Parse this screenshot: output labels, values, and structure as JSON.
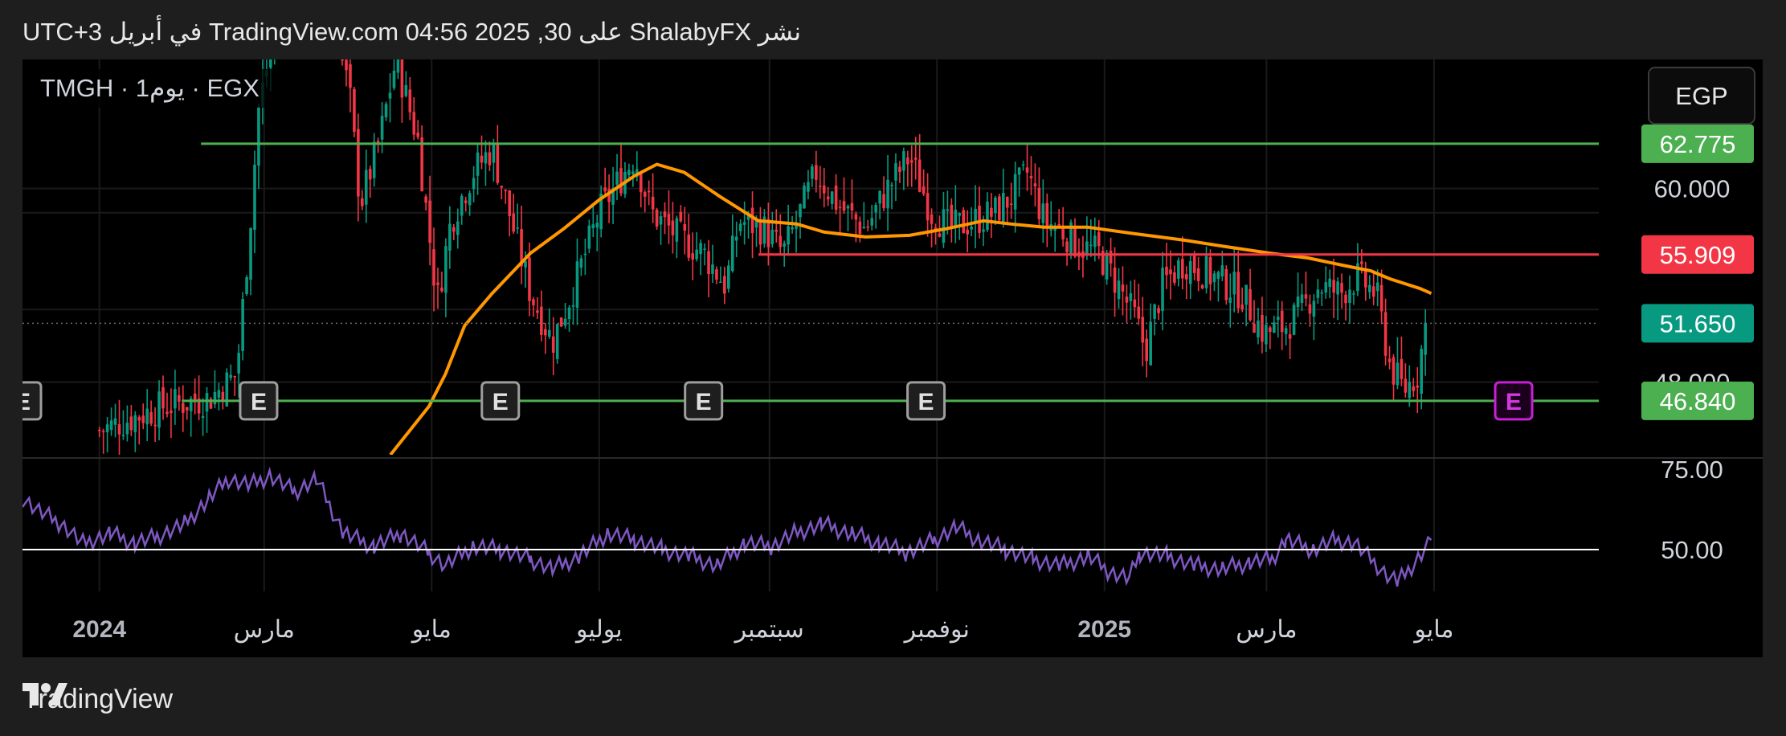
{
  "header": {
    "publish_text": "نشر ShalabyFX على TradingView.com 04:56 2025 ,30 في أبريل UTC+3"
  },
  "footer": {
    "brand": "TradingView",
    "logo_icon": "tradingview-logo-icon"
  },
  "chart_data": {
    "type": "candlestick",
    "symbol_label": "TMGH · 1يوم · EGX",
    "currency_button": "EGP",
    "price_axis": {
      "ticks": [
        "60.000",
        "48.000"
      ],
      "range": [
        43.5,
        68.0
      ],
      "hidden_tick_partial": "62.775"
    },
    "price_labels": [
      {
        "value": 62.775,
        "text": "62.775",
        "color": "#4caf50"
      },
      {
        "value": 55.909,
        "text": "55.909",
        "color": "#f23645"
      },
      {
        "value": 51.65,
        "text": "51.650",
        "color": "#089981"
      },
      {
        "value": 46.84,
        "text": "46.840",
        "color": "#4caf50"
      }
    ],
    "horizontal_lines": [
      {
        "value": 62.775,
        "color": "#4caf50",
        "from": "2024-02-07",
        "to": "2025-06-30"
      },
      {
        "value": 55.909,
        "color": "#f23645",
        "from": "2024-08-28",
        "to": "2025-06-30"
      },
      {
        "value": 46.84,
        "color": "#4caf50",
        "from": "2024-01-31",
        "to": "2025-06-30"
      },
      {
        "value": 51.65,
        "color": "#6b6b6b",
        "style": "dotted",
        "from": "2023-12-04",
        "to": "2025-06-30"
      }
    ],
    "time_axis": {
      "range": [
        "2023-12-04",
        "2025-06-30"
      ],
      "labels": [
        {
          "date": "2024-01-01",
          "text": "2024",
          "bold": true
        },
        {
          "date": "2024-03-01",
          "text": "مارس"
        },
        {
          "date": "2024-05-01",
          "text": "مايو"
        },
        {
          "date": "2024-07-01",
          "text": "يوليو"
        },
        {
          "date": "2024-09-01",
          "text": "سبتمبر"
        },
        {
          "date": "2024-11-01",
          "text": "نوفمبر"
        },
        {
          "date": "2025-01-01",
          "text": "2025",
          "bold": true
        },
        {
          "date": "2025-03-01",
          "text": "مارس"
        },
        {
          "date": "2025-05-01",
          "text": "مايو"
        }
      ]
    },
    "earnings_markers": [
      {
        "date": "2023-12-04",
        "label": "E"
      },
      {
        "date": "2024-02-28",
        "label": "E"
      },
      {
        "date": "2024-05-26",
        "label": "E"
      },
      {
        "date": "2024-08-08",
        "label": "E"
      },
      {
        "date": "2024-10-28",
        "label": "E"
      },
      {
        "date": "2025-05-30",
        "label": "E",
        "upcoming": true
      }
    ],
    "moving_average": {
      "color": "#ff9800",
      "points": [
        [
          "2024-04-16",
          43.5
        ],
        [
          "2024-04-30",
          46.5
        ],
        [
          "2024-05-06",
          48.5
        ],
        [
          "2024-05-13",
          51.5
        ],
        [
          "2024-05-23",
          53.5
        ],
        [
          "2024-06-06",
          56.0
        ],
        [
          "2024-06-18",
          57.5
        ],
        [
          "2024-07-01",
          59.3
        ],
        [
          "2024-07-14",
          60.8
        ],
        [
          "2024-07-22",
          61.5
        ],
        [
          "2024-08-01",
          61.0
        ],
        [
          "2024-08-14",
          59.5
        ],
        [
          "2024-08-28",
          58.0
        ],
        [
          "2024-09-11",
          57.8
        ],
        [
          "2024-09-21",
          57.3
        ],
        [
          "2024-10-06",
          57.0
        ],
        [
          "2024-10-22",
          57.1
        ],
        [
          "2024-11-04",
          57.5
        ],
        [
          "2024-11-18",
          58.0
        ],
        [
          "2024-11-28",
          57.8
        ],
        [
          "2024-12-10",
          57.6
        ],
        [
          "2024-12-26",
          57.6
        ],
        [
          "2025-01-12",
          57.2
        ],
        [
          "2025-01-30",
          56.8
        ],
        [
          "2025-02-14",
          56.4
        ],
        [
          "2025-03-02",
          56.0
        ],
        [
          "2025-03-16",
          55.7
        ],
        [
          "2025-03-30",
          55.2
        ],
        [
          "2025-04-08",
          54.9
        ],
        [
          "2025-04-15",
          54.4
        ],
        [
          "2025-04-26",
          53.8
        ],
        [
          "2025-04-30",
          53.5
        ]
      ]
    },
    "price_path": [
      [
        "2024-01-01",
        45.0
      ],
      [
        "2024-01-24",
        46.5
      ],
      [
        "2024-02-10",
        47.0
      ],
      [
        "2024-02-20",
        48.5
      ],
      [
        "2024-02-25",
        58.0
      ],
      [
        "2024-02-28",
        65.0
      ],
      [
        "2024-03-05",
        70.0
      ],
      [
        "2024-03-20",
        75.0
      ],
      [
        "2024-04-01",
        66.0
      ],
      [
        "2024-04-05",
        59.0
      ],
      [
        "2024-04-12",
        63.0
      ],
      [
        "2024-04-18",
        68.0
      ],
      [
        "2024-04-26",
        63.0
      ],
      [
        "2024-05-03",
        53.0
      ],
      [
        "2024-05-08",
        58.0
      ],
      [
        "2024-05-16",
        61.0
      ],
      [
        "2024-05-23",
        62.5
      ],
      [
        "2024-05-30",
        58.0
      ],
      [
        "2024-06-06",
        53.5
      ],
      [
        "2024-06-14",
        50.5
      ],
      [
        "2024-06-22",
        54.0
      ],
      [
        "2024-07-01",
        58.5
      ],
      [
        "2024-07-10",
        61.0
      ],
      [
        "2024-07-14",
        62.0
      ],
      [
        "2024-07-20",
        58.5
      ],
      [
        "2024-07-30",
        57.0
      ],
      [
        "2024-08-08",
        56.0
      ],
      [
        "2024-08-16",
        54.0
      ],
      [
        "2024-08-21",
        58.0
      ],
      [
        "2024-08-30",
        57.5
      ],
      [
        "2024-09-06",
        56.0
      ],
      [
        "2024-09-11",
        58.0
      ],
      [
        "2024-09-18",
        61.0
      ],
      [
        "2024-09-26",
        59.0
      ],
      [
        "2024-10-06",
        57.5
      ],
      [
        "2024-10-14",
        60.0
      ],
      [
        "2024-10-22",
        62.0
      ],
      [
        "2024-10-30",
        58.5
      ],
      [
        "2024-11-06",
        57.5
      ],
      [
        "2024-11-14",
        58.0
      ],
      [
        "2024-11-22",
        58.5
      ],
      [
        "2024-11-28",
        59.5
      ],
      [
        "2024-12-04",
        61.0
      ],
      [
        "2024-12-10",
        58.0
      ],
      [
        "2024-12-16",
        57.5
      ],
      [
        "2024-12-22",
        56.5
      ],
      [
        "2024-12-30",
        56.0
      ],
      [
        "2025-01-06",
        54.0
      ],
      [
        "2025-01-12",
        52.0
      ],
      [
        "2025-01-16",
        50.0
      ],
      [
        "2025-01-22",
        54.0
      ],
      [
        "2025-01-30",
        55.5
      ],
      [
        "2025-02-10",
        54.5
      ],
      [
        "2025-02-20",
        53.5
      ],
      [
        "2025-02-28",
        51.0
      ],
      [
        "2025-03-08",
        51.5
      ],
      [
        "2025-03-14",
        52.5
      ],
      [
        "2025-03-20",
        54.0
      ],
      [
        "2025-03-28",
        53.5
      ],
      [
        "2025-04-03",
        54.5
      ],
      [
        "2025-04-10",
        53.5
      ],
      [
        "2025-04-15",
        49.0
      ],
      [
        "2025-04-20",
        47.5
      ],
      [
        "2025-04-25",
        48.5
      ],
      [
        "2025-04-28",
        51.65
      ]
    ],
    "rsi": {
      "axis_ticks": [
        "75.00",
        "50.00"
      ],
      "range": [
        37,
        75
      ],
      "reference_level": 50,
      "reference_color": "#ffffff",
      "color": "#7e57c2",
      "points": [
        [
          "2023-12-04",
          66
        ],
        [
          "2023-12-10",
          62
        ],
        [
          "2023-12-18",
          58
        ],
        [
          "2023-12-26",
          52
        ],
        [
          "2024-01-05",
          55
        ],
        [
          "2024-01-14",
          52
        ],
        [
          "2024-01-22",
          54
        ],
        [
          "2024-02-01",
          58
        ],
        [
          "2024-02-10",
          66
        ],
        [
          "2024-02-17",
          72
        ],
        [
          "2024-02-25",
          70
        ],
        [
          "2024-03-03",
          73
        ],
        [
          "2024-03-12",
          68
        ],
        [
          "2024-03-20",
          72
        ],
        [
          "2024-03-30",
          55
        ],
        [
          "2024-04-10",
          51
        ],
        [
          "2024-04-20",
          55
        ],
        [
          "2024-04-30",
          49
        ],
        [
          "2024-05-06",
          45
        ],
        [
          "2024-05-16",
          51
        ],
        [
          "2024-05-26",
          50
        ],
        [
          "2024-06-06",
          47
        ],
        [
          "2024-06-14",
          44
        ],
        [
          "2024-06-24",
          48
        ],
        [
          "2024-07-04",
          55
        ],
        [
          "2024-07-14",
          53
        ],
        [
          "2024-07-24",
          50
        ],
        [
          "2024-08-03",
          48
        ],
        [
          "2024-08-13",
          45
        ],
        [
          "2024-08-23",
          52
        ],
        [
          "2024-09-02",
          51
        ],
        [
          "2024-09-10",
          55
        ],
        [
          "2024-09-20",
          58
        ],
        [
          "2024-10-01",
          55
        ],
        [
          "2024-10-11",
          52
        ],
        [
          "2024-10-21",
          49
        ],
        [
          "2024-10-31",
          53
        ],
        [
          "2024-11-08",
          57
        ],
        [
          "2024-11-16",
          53
        ],
        [
          "2024-11-26",
          50
        ],
        [
          "2024-12-06",
          47
        ],
        [
          "2024-12-16",
          45
        ],
        [
          "2024-12-26",
          48
        ],
        [
          "2025-01-03",
          43
        ],
        [
          "2025-01-10",
          41
        ],
        [
          "2025-01-14",
          49
        ],
        [
          "2025-01-24",
          48
        ],
        [
          "2025-02-03",
          45
        ],
        [
          "2025-02-13",
          44
        ],
        [
          "2025-02-23",
          46
        ],
        [
          "2025-03-03",
          47
        ],
        [
          "2025-03-08",
          53
        ],
        [
          "2025-03-18",
          50
        ],
        [
          "2025-03-26",
          53
        ],
        [
          "2025-04-02",
          52
        ],
        [
          "2025-04-08",
          47
        ],
        [
          "2025-04-14",
          42
        ],
        [
          "2025-04-18",
          40
        ],
        [
          "2025-04-24",
          46
        ],
        [
          "2025-04-30",
          53
        ]
      ]
    },
    "colors": {
      "up": "#089981",
      "down": "#f23645",
      "ma": "#ff9800",
      "rsi": "#7e57c2",
      "support": "#4caf50",
      "resistance": "#f23645"
    }
  }
}
